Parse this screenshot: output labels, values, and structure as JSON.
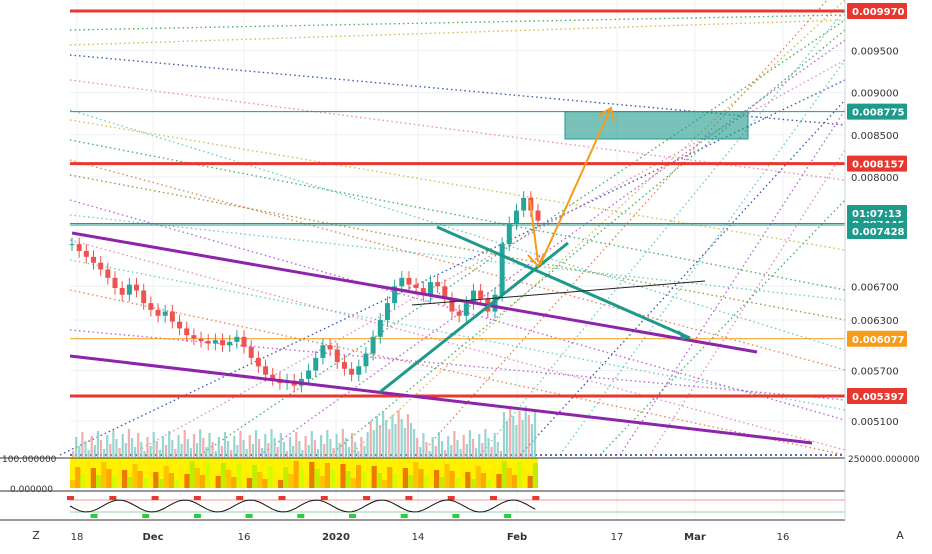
{
  "chart_data": {
    "type": "candlestick",
    "title": "",
    "price_axis": {
      "ticks": [
        "0.009500",
        "0.009000",
        "0.008500",
        "0.008000",
        "0.006700",
        "0.006300",
        "0.005700",
        "0.005100"
      ],
      "range": [
        0.0047,
        0.0101
      ],
      "highlighted_levels": [
        {
          "label": "0.009970",
          "value": 0.00997,
          "color": "#e8372f"
        },
        {
          "label": "0.008775",
          "value": 0.008775,
          "color": "#1e9a8a"
        },
        {
          "label": "0.008157",
          "value": 0.008157,
          "color": "#e8372f"
        },
        {
          "label": "0.007446",
          "value": 0.007446,
          "color": "#1e9a8a"
        },
        {
          "label": "01:07:13",
          "value": 0.007425,
          "color": "#1e9a8a"
        },
        {
          "label": "0.007428",
          "value": 0.007428,
          "color": "#1e9a8a"
        },
        {
          "label": "0.006077",
          "value": 0.006077,
          "color": "#f59c1a"
        },
        {
          "label": "0.005397",
          "value": 0.005397,
          "color": "#e8372f"
        }
      ]
    },
    "time_axis": {
      "ticks": [
        "18",
        "Dec",
        "16",
        "2020",
        "14",
        "Feb",
        "17",
        "Mar",
        "16"
      ]
    },
    "volume_panel": {
      "axis_label": "250000.000000"
    },
    "indicator_panel": {
      "axis_labels": [
        "100.000000",
        "0.000000"
      ]
    },
    "price_path": [
      0.0072,
      0.00712,
      0.00705,
      0.00698,
      0.0069,
      0.0068,
      0.00668,
      0.0066,
      0.00672,
      0.00665,
      0.0065,
      0.00642,
      0.00635,
      0.0064,
      0.00628,
      0.0062,
      0.00612,
      0.00608,
      0.00605,
      0.00602,
      0.00606,
      0.006,
      0.00604,
      0.0061,
      0.00598,
      0.00585,
      0.00575,
      0.00565,
      0.0056,
      0.00555,
      0.00558,
      0.00552,
      0.0056,
      0.0057,
      0.00585,
      0.006,
      0.00595,
      0.0058,
      0.00572,
      0.00565,
      0.00575,
      0.0059,
      0.0061,
      0.0063,
      0.0065,
      0.0067,
      0.0068,
      0.00672,
      0.00668,
      0.0066,
      0.00675,
      0.0067,
      0.00655,
      0.0064,
      0.00635,
      0.0065,
      0.00665,
      0.00655,
      0.0064,
      0.0066,
      0.0072,
      0.00745,
      0.0076,
      0.00775,
      0.0076,
      0.00748
    ]
  },
  "buttons": {
    "left": "Z",
    "right": "A"
  }
}
